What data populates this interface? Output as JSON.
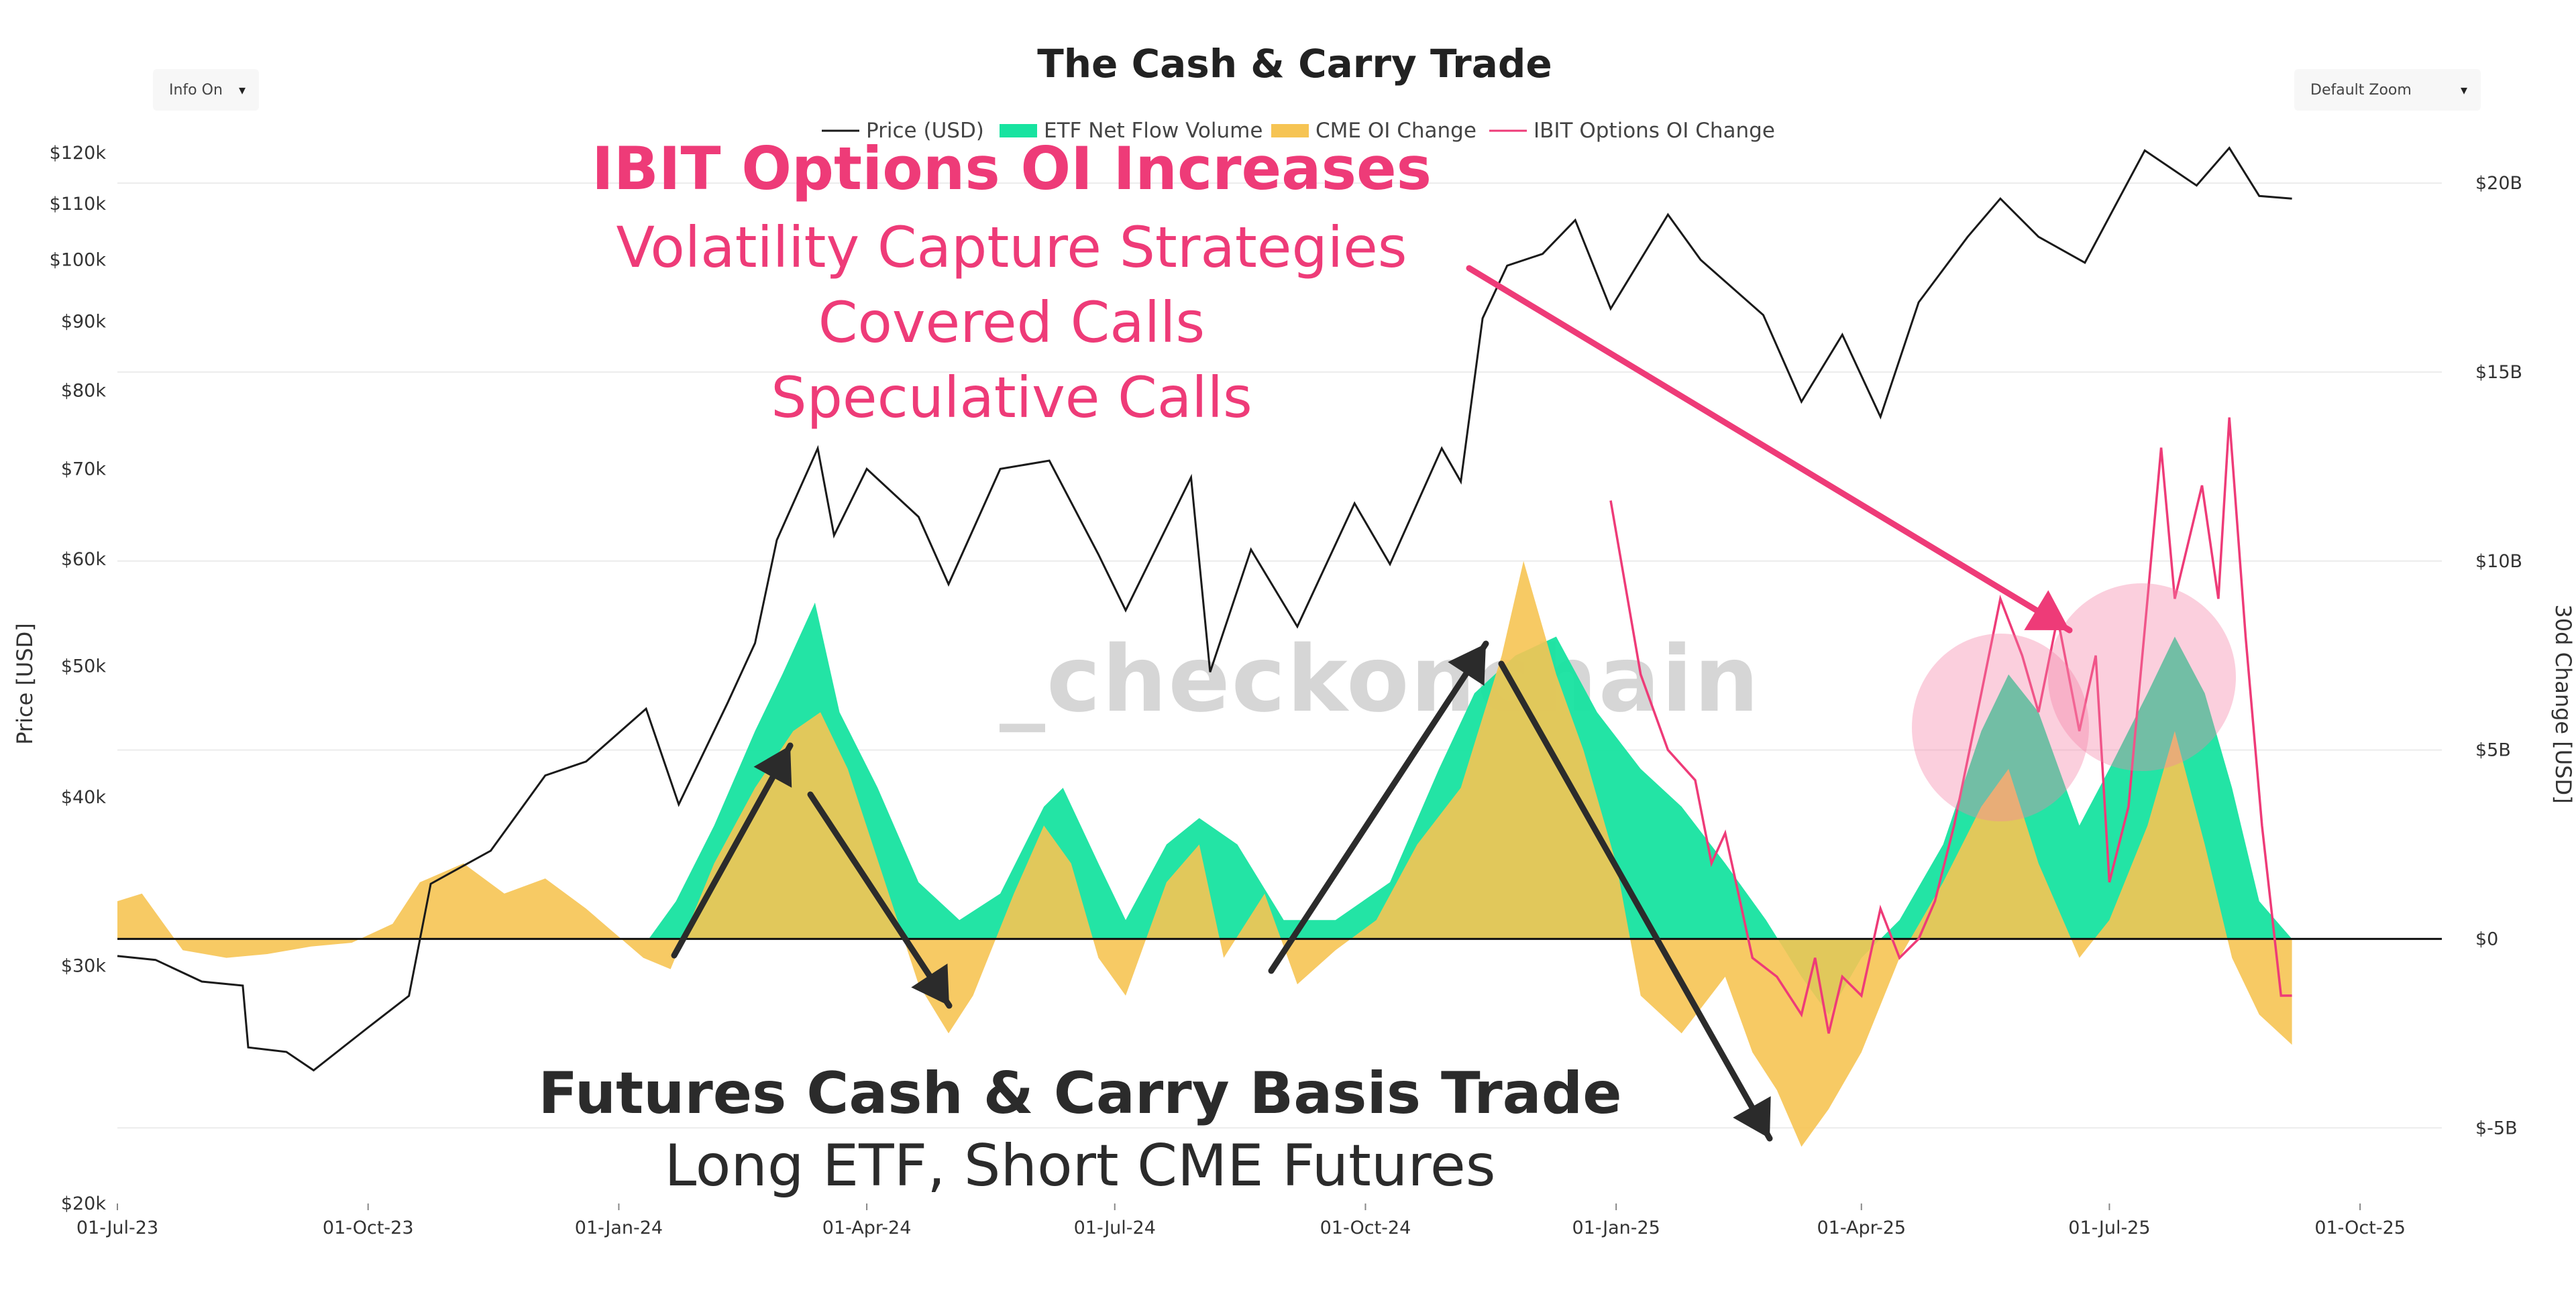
{
  "controls": {
    "info_toggle": "Info On",
    "zoom_select": "Default Zoom",
    "caret": "▾"
  },
  "watermark": "_checkonchain",
  "colors": {
    "price": "#1a1a1a",
    "etf": "#17e3a0",
    "cme": "#f6c453",
    "ibit": "#ee3b78",
    "annotation_pink": "#ee3b78",
    "annotation_dark": "#2b2b2b",
    "highlight_circle": "rgba(244,130,165,0.38)",
    "watermark_gray": "#d6d6d6",
    "watermark_orange": "#f6c87a"
  },
  "annotations": {
    "options_title": "IBIT Options OI Increases",
    "options_lines": [
      "Volatility Capture Strategies",
      "Covered Calls",
      "Speculative Calls"
    ],
    "basis_title": "Futures Cash & Carry Basis Trade",
    "basis_subtitle": "Long ETF, Short CME Futures"
  },
  "chart_data": {
    "type": "line",
    "title": "The Cash & Carry Trade",
    "legend_position": "top-center",
    "grid": true,
    "x_ticks": [
      "01-Jul-23",
      "01-Oct-23",
      "01-Jan-24",
      "01-Apr-24",
      "01-Jul-24",
      "01-Oct-24",
      "01-Jan-25",
      "01-Apr-25",
      "01-Jul-25",
      "01-Oct-25"
    ],
    "x_range": [
      "2023-07-01",
      "2025-10-31"
    ],
    "y_left": {
      "label": "Price [USD]",
      "scale": "log",
      "range": [
        20000,
        120000
      ],
      "ticks": [
        "$20k",
        "$30k",
        "$40k",
        "$50k",
        "$60k",
        "$70k",
        "$80k",
        "$90k",
        "$100k",
        "$110k",
        "$120k"
      ],
      "tick_values": [
        20000,
        30000,
        40000,
        50000,
        60000,
        70000,
        80000,
        90000,
        100000,
        110000,
        120000
      ]
    },
    "y_right": {
      "label": "30d Change [USD]",
      "scale": "linear",
      "range": [
        -7,
        20.8
      ],
      "ticks": [
        "$-5B",
        "$0",
        "$5B",
        "$10B",
        "$15B",
        "$20B"
      ],
      "tick_values": [
        -5,
        0,
        5,
        10,
        15,
        20
      ]
    },
    "series": [
      {
        "name": "Price (USD)",
        "type": "line",
        "axis": "left",
        "points": [
          [
            "2023-07-01",
            30500
          ],
          [
            "2023-07-15",
            30300
          ],
          [
            "2023-08-01",
            29200
          ],
          [
            "2023-08-16",
            29000
          ],
          [
            "2023-08-18",
            26100
          ],
          [
            "2023-09-01",
            25900
          ],
          [
            "2023-09-11",
            25100
          ],
          [
            "2023-10-01",
            27000
          ],
          [
            "2023-10-16",
            28500
          ],
          [
            "2023-10-24",
            34500
          ],
          [
            "2023-11-15",
            36500
          ],
          [
            "2023-12-05",
            41500
          ],
          [
            "2023-12-20",
            42500
          ],
          [
            "2024-01-11",
            46500
          ],
          [
            "2024-01-23",
            39500
          ],
          [
            "2024-02-10",
            47000
          ],
          [
            "2024-02-20",
            52000
          ],
          [
            "2024-02-28",
            62000
          ],
          [
            "2024-03-14",
            72500
          ],
          [
            "2024-03-20",
            62500
          ],
          [
            "2024-04-01",
            70000
          ],
          [
            "2024-04-20",
            64500
          ],
          [
            "2024-05-01",
            57500
          ],
          [
            "2024-05-20",
            70000
          ],
          [
            "2024-06-07",
            71000
          ],
          [
            "2024-06-25",
            60500
          ],
          [
            "2024-07-05",
            55000
          ],
          [
            "2024-07-29",
            69000
          ],
          [
            "2024-08-05",
            49500
          ],
          [
            "2024-08-20",
            61000
          ],
          [
            "2024-09-06",
            53500
          ],
          [
            "2024-09-27",
            66000
          ],
          [
            "2024-10-10",
            59500
          ],
          [
            "2024-10-29",
            72500
          ],
          [
            "2024-11-05",
            68500
          ],
          [
            "2024-11-13",
            90500
          ],
          [
            "2024-11-22",
            99000
          ],
          [
            "2024-12-05",
            101000
          ],
          [
            "2024-12-17",
            107000
          ],
          [
            "2024-12-30",
            92000
          ],
          [
            "2025-01-20",
            108000
          ],
          [
            "2025-02-01",
            100000
          ],
          [
            "2025-02-24",
            91000
          ],
          [
            "2025-03-10",
            78500
          ],
          [
            "2025-03-25",
            88000
          ],
          [
            "2025-04-08",
            76500
          ],
          [
            "2025-04-22",
            93000
          ],
          [
            "2025-05-10",
            104000
          ],
          [
            "2025-05-22",
            111000
          ],
          [
            "2025-06-05",
            104000
          ],
          [
            "2025-06-22",
            99500
          ],
          [
            "2025-07-03",
            109500
          ],
          [
            "2025-07-14",
            120500
          ],
          [
            "2025-08-02",
            113500
          ],
          [
            "2025-08-14",
            121000
          ],
          [
            "2025-08-25",
            111500
          ],
          [
            "2025-09-06",
            111000
          ]
        ]
      },
      {
        "name": "ETF Net Flow Volume",
        "type": "area",
        "axis": "right",
        "points": [
          [
            "2023-07-01",
            0
          ],
          [
            "2024-01-12",
            0
          ],
          [
            "2024-01-22",
            1.0
          ],
          [
            "2024-02-05",
            3.0
          ],
          [
            "2024-02-20",
            5.5
          ],
          [
            "2024-03-01",
            7.0
          ],
          [
            "2024-03-13",
            8.9
          ],
          [
            "2024-03-22",
            6.0
          ],
          [
            "2024-04-05",
            4.0
          ],
          [
            "2024-04-20",
            1.5
          ],
          [
            "2024-05-05",
            0.5
          ],
          [
            "2024-05-20",
            1.2
          ],
          [
            "2024-06-05",
            3.5
          ],
          [
            "2024-06-12",
            4.0
          ],
          [
            "2024-06-25",
            2.0
          ],
          [
            "2024-07-05",
            0.5
          ],
          [
            "2024-07-20",
            2.5
          ],
          [
            "2024-08-01",
            3.2
          ],
          [
            "2024-08-15",
            2.5
          ],
          [
            "2024-09-01",
            0.5
          ],
          [
            "2024-09-20",
            0.5
          ],
          [
            "2024-10-10",
            1.5
          ],
          [
            "2024-10-28",
            4.5
          ],
          [
            "2024-11-10",
            6.5
          ],
          [
            "2024-11-25",
            7.5
          ],
          [
            "2024-12-10",
            8.0
          ],
          [
            "2024-12-25",
            6.0
          ],
          [
            "2025-01-10",
            4.5
          ],
          [
            "2025-01-25",
            3.5
          ],
          [
            "2025-02-10",
            2.0
          ],
          [
            "2025-02-25",
            0.5
          ],
          [
            "2025-03-10",
            -1.0
          ],
          [
            "2025-03-20",
            -2.0
          ],
          [
            "2025-04-01",
            -0.5
          ],
          [
            "2025-04-15",
            0.5
          ],
          [
            "2025-05-01",
            2.5
          ],
          [
            "2025-05-15",
            5.5
          ],
          [
            "2025-05-25",
            7.0
          ],
          [
            "2025-06-05",
            6.0
          ],
          [
            "2025-06-20",
            3.0
          ],
          [
            "2025-07-01",
            4.5
          ],
          [
            "2025-07-15",
            6.5
          ],
          [
            "2025-07-25",
            8.0
          ],
          [
            "2025-08-05",
            6.5
          ],
          [
            "2025-08-15",
            4.0
          ],
          [
            "2025-08-25",
            1.0
          ],
          [
            "2025-09-06",
            0.0
          ]
        ]
      },
      {
        "name": "CME OI Change",
        "type": "area",
        "axis": "right",
        "points": [
          [
            "2023-07-01",
            1.0
          ],
          [
            "2023-07-10",
            1.2
          ],
          [
            "2023-07-25",
            -0.3
          ],
          [
            "2023-08-10",
            -0.5
          ],
          [
            "2023-08-25",
            -0.4
          ],
          [
            "2023-09-10",
            -0.2
          ],
          [
            "2023-09-25",
            -0.1
          ],
          [
            "2023-10-10",
            0.4
          ],
          [
            "2023-10-20",
            1.5
          ],
          [
            "2023-11-05",
            2.0
          ],
          [
            "2023-11-20",
            1.2
          ],
          [
            "2023-12-05",
            1.6
          ],
          [
            "2023-12-20",
            0.8
          ],
          [
            "2024-01-10",
            -0.5
          ],
          [
            "2024-01-20",
            -0.8
          ],
          [
            "2024-02-05",
            2.0
          ],
          [
            "2024-02-20",
            4.0
          ],
          [
            "2024-03-05",
            5.5
          ],
          [
            "2024-03-15",
            6.0
          ],
          [
            "2024-03-25",
            4.5
          ],
          [
            "2024-04-10",
            1.0
          ],
          [
            "2024-04-20",
            -1.2
          ],
          [
            "2024-05-01",
            -2.5
          ],
          [
            "2024-05-10",
            -1.5
          ],
          [
            "2024-05-25",
            1.2
          ],
          [
            "2024-06-05",
            3.0
          ],
          [
            "2024-06-15",
            2.0
          ],
          [
            "2024-06-25",
            -0.5
          ],
          [
            "2024-07-05",
            -1.5
          ],
          [
            "2024-07-20",
            1.5
          ],
          [
            "2024-08-01",
            2.5
          ],
          [
            "2024-08-10",
            -0.5
          ],
          [
            "2024-08-25",
            1.2
          ],
          [
            "2024-09-06",
            -1.2
          ],
          [
            "2024-09-20",
            -0.3
          ],
          [
            "2024-10-05",
            0.5
          ],
          [
            "2024-10-20",
            2.5
          ],
          [
            "2024-11-05",
            4.0
          ],
          [
            "2024-11-20",
            7.5
          ],
          [
            "2024-11-28",
            10.0
          ],
          [
            "2024-12-10",
            7.0
          ],
          [
            "2024-12-20",
            5.0
          ],
          [
            "2025-01-01",
            2.0
          ],
          [
            "2025-01-10",
            -1.5
          ],
          [
            "2025-01-25",
            -2.5
          ],
          [
            "2025-02-10",
            -1.0
          ],
          [
            "2025-02-20",
            -3.0
          ],
          [
            "2025-03-01",
            -4.0
          ],
          [
            "2025-03-10",
            -5.5
          ],
          [
            "2025-03-20",
            -4.5
          ],
          [
            "2025-04-01",
            -3.0
          ],
          [
            "2025-04-15",
            -0.5
          ],
          [
            "2025-05-01",
            1.5
          ],
          [
            "2025-05-15",
            3.5
          ],
          [
            "2025-05-25",
            4.5
          ],
          [
            "2025-06-05",
            2.0
          ],
          [
            "2025-06-20",
            -0.5
          ],
          [
            "2025-07-01",
            0.5
          ],
          [
            "2025-07-15",
            3.0
          ],
          [
            "2025-07-25",
            5.5
          ],
          [
            "2025-08-05",
            2.5
          ],
          [
            "2025-08-15",
            -0.5
          ],
          [
            "2025-08-25",
            -2.0
          ],
          [
            "2025-09-06",
            -2.8
          ]
        ]
      },
      {
        "name": "IBIT Options OI Change",
        "type": "line",
        "axis": "right",
        "points": [
          [
            "2024-12-30",
            11.6
          ],
          [
            "2025-01-10",
            7.0
          ],
          [
            "2025-01-20",
            5.0
          ],
          [
            "2025-01-30",
            4.2
          ],
          [
            "2025-02-05",
            2.0
          ],
          [
            "2025-02-10",
            2.8
          ],
          [
            "2025-02-20",
            -0.5
          ],
          [
            "2025-03-01",
            -1.0
          ],
          [
            "2025-03-10",
            -2.0
          ],
          [
            "2025-03-15",
            -0.5
          ],
          [
            "2025-03-20",
            -2.5
          ],
          [
            "2025-03-25",
            -1.0
          ],
          [
            "2025-04-01",
            -1.5
          ],
          [
            "2025-04-08",
            0.8
          ],
          [
            "2025-04-15",
            -0.5
          ],
          [
            "2025-04-22",
            0.0
          ],
          [
            "2025-04-28",
            1.0
          ],
          [
            "2025-05-05",
            3.0
          ],
          [
            "2025-05-15",
            6.5
          ],
          [
            "2025-05-22",
            9.0
          ],
          [
            "2025-05-30",
            7.5
          ],
          [
            "2025-06-05",
            6.0
          ],
          [
            "2025-06-12",
            8.5
          ],
          [
            "2025-06-20",
            5.5
          ],
          [
            "2025-06-26",
            7.5
          ],
          [
            "2025-07-01",
            1.5
          ],
          [
            "2025-07-08",
            3.5
          ],
          [
            "2025-07-15",
            9.0
          ],
          [
            "2025-07-20",
            13.0
          ],
          [
            "2025-07-25",
            9.0
          ],
          [
            "2025-07-30",
            10.5
          ],
          [
            "2025-08-04",
            12.0
          ],
          [
            "2025-08-10",
            9.0
          ],
          [
            "2025-08-14",
            13.8
          ],
          [
            "2025-08-20",
            8.0
          ],
          [
            "2025-08-26",
            3.0
          ],
          [
            "2025-09-02",
            -1.5
          ],
          [
            "2025-09-06",
            -1.5
          ]
        ]
      }
    ]
  }
}
